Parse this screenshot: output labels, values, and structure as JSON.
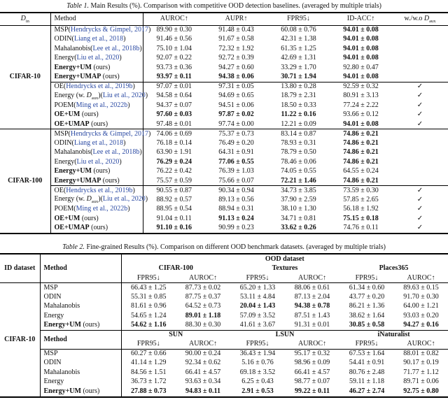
{
  "colors": {
    "citation_blue": "#2b4aa3",
    "text": "#111111",
    "rule": "#000000"
  },
  "check_glyph": "✓",
  "table1": {
    "caption_tag": "Table 1.",
    "caption_text": " Main Results (%). Comparison with competitive OOD detection baselines. (averaged by multiple trials)",
    "header": {
      "din_main": "D",
      "din_sub": "in",
      "method": "Method",
      "metrics": [
        "AUROC↑",
        "AUPR↑",
        "FPR95↓",
        "ID-ACC↑"
      ],
      "aux_prefix": "w./w.o ",
      "aux_main": "D",
      "aux_sub": "aux"
    },
    "groups": [
      {
        "dataset": "CIFAR-10",
        "blocks": [
          {
            "rows": [
              {
                "name": "MSP",
                "cite": "Hendrycks & Gimpel, 2017",
                "ours": false,
                "check": false,
                "values": [
                  "89.90 ± 0.30",
                  "91.48 ± 0.43",
                  "60.08 ± 0.76",
                  "94.01 ± 0.08"
                ],
                "bold": [
                  0,
                  0,
                  0,
                  1
                ]
              },
              {
                "name": "ODIN",
                "cite": "Liang et al., 2018",
                "ours": false,
                "check": false,
                "values": [
                  "91.46 ± 0.56",
                  "91.67 ± 0.58",
                  "42.31 ± 1.38",
                  "94.01 ± 0.08"
                ],
                "bold": [
                  0,
                  0,
                  0,
                  1
                ]
              },
              {
                "name": "Mahalanobis",
                "cite": "Lee et al., 2018b",
                "ours": false,
                "check": false,
                "values": [
                  "75.10 ± 1.04",
                  "72.32 ± 1.92",
                  "61.35 ± 1.25",
                  "94.01 ± 0.08"
                ],
                "bold": [
                  0,
                  0,
                  0,
                  1
                ]
              },
              {
                "name": "Energy",
                "cite": "Liu et al., 2020",
                "ours": false,
                "check": false,
                "values": [
                  "92.07 ± 0.22",
                  "92.72 ± 0.39",
                  "42.69 ± 1.31",
                  "94.01 ± 0.08"
                ],
                "bold": [
                  0,
                  0,
                  0,
                  1
                ]
              },
              {
                "name": "Energy+UM",
                "ours": true,
                "check": false,
                "values": [
                  "93.73 ± 0.36",
                  "94.27 ± 0.60",
                  "33.29 ± 1.70",
                  "92.80 ± 0.47"
                ],
                "bold": [
                  0,
                  0,
                  0,
                  0
                ]
              },
              {
                "name": "Energy+UMAP",
                "ours": true,
                "check": false,
                "values": [
                  "93.97 ± 0.11",
                  "94.38 ± 0.06",
                  "30.71 ± 1.94",
                  "94.01 ± 0.08"
                ],
                "bold": [
                  1,
                  1,
                  1,
                  1
                ]
              }
            ]
          },
          {
            "rows": [
              {
                "name": "OE",
                "cite": "Hendrycks et al., 2019b",
                "ours": false,
                "check": true,
                "values": [
                  "97.07 ± 0.01",
                  "97.31 ± 0.05",
                  "13.80 ± 0.28",
                  "92.59 ± 0.32"
                ],
                "bold": [
                  0,
                  0,
                  0,
                  0
                ]
              },
              {
                "name": "Energy (w. ",
                "aux": true,
                "after_aux": ")",
                "cite": "Liu et al., 2020",
                "ours": false,
                "check": true,
                "values": [
                  "94.58 ± 0.64",
                  "94.69 ± 0.65",
                  "18.79 ± 2.31",
                  "80.91 ± 3.13"
                ],
                "bold": [
                  0,
                  0,
                  0,
                  0
                ]
              },
              {
                "name": "POEM",
                "cite": "Ming et al., 2022b",
                "ours": false,
                "check": true,
                "values": [
                  "94.37 ± 0.07",
                  "94.51 ± 0.06",
                  "18.50 ± 0.33",
                  "77.24 ± 2.22"
                ],
                "bold": [
                  0,
                  0,
                  0,
                  0
                ]
              },
              {
                "name": "OE+UM",
                "ours": true,
                "check": true,
                "values": [
                  "97.60 ± 0.03",
                  "97.87 ± 0.02",
                  "11.22 ± 0.16",
                  "93.66 ± 0.12"
                ],
                "bold": [
                  1,
                  1,
                  1,
                  0
                ]
              },
              {
                "name": "OE+UMAP",
                "ours": true,
                "check": true,
                "values": [
                  "97.48 ± 0.01",
                  "97.74 ± 0.00",
                  "12.21 ± 0.09",
                  "94.01 ± 0.08"
                ],
                "bold": [
                  0,
                  0,
                  0,
                  1
                ]
              }
            ]
          }
        ]
      },
      {
        "dataset": "CIFAR-100",
        "blocks": [
          {
            "rows": [
              {
                "name": "MSP",
                "cite": "Hendrycks & Gimpel, 2017",
                "ours": false,
                "check": false,
                "values": [
                  "74.06 ± 0.69",
                  "75.37 ± 0.73",
                  "83.14 ± 0.87",
                  "74.86 ± 0.21"
                ],
                "bold": [
                  0,
                  0,
                  0,
                  1
                ]
              },
              {
                "name": "ODIN",
                "cite": "Liang et al., 2018",
                "ours": false,
                "check": false,
                "values": [
                  "76.18 ± 0.14",
                  "76.49 ± 0.20",
                  "78.93 ± 0.31",
                  "74.86 ± 0.21"
                ],
                "bold": [
                  0,
                  0,
                  0,
                  1
                ]
              },
              {
                "name": "Mahalanobis",
                "cite": "Lee et al., 2018b",
                "ours": false,
                "check": false,
                "values": [
                  "63.90 ± 1.91",
                  "64.31 ± 0.91",
                  "78.79 ± 0.50",
                  "74.86 ± 0.21"
                ],
                "bold": [
                  0,
                  0,
                  0,
                  1
                ]
              },
              {
                "name": "Energy",
                "cite": "Liu et al., 2020",
                "ours": false,
                "check": false,
                "values": [
                  "76.29 ± 0.24",
                  "77.06 ± 0.55",
                  "78.46 ± 0.06",
                  "74.86 ± 0.21"
                ],
                "bold": [
                  1,
                  1,
                  0,
                  1
                ]
              },
              {
                "name": "Energy+UM",
                "ours": true,
                "check": false,
                "values": [
                  "76.22 ± 0.42",
                  "76.39 ± 1.03",
                  "74.05 ± 0.55",
                  "64.55 ± 0.24"
                ],
                "bold": [
                  0,
                  0,
                  0,
                  0
                ]
              },
              {
                "name": "Energy+UMAP",
                "ours": true,
                "check": false,
                "values": [
                  "75.57 ± 0.59",
                  "75.66 ± 0.07",
                  "72.21 ± 1.46",
                  "74.86 ± 0.21"
                ],
                "bold": [
                  0,
                  0,
                  1,
                  1
                ]
              }
            ]
          },
          {
            "rows": [
              {
                "name": "OE",
                "cite": "Hendrycks et al., 2019b",
                "ours": false,
                "check": true,
                "values": [
                  "90.55 ± 0.87",
                  "90.34 ± 0.94",
                  "34.73 ± 3.85",
                  "73.59 ± 0.30"
                ],
                "bold": [
                  0,
                  0,
                  0,
                  0
                ]
              },
              {
                "name": "Energy (w. ",
                "aux": true,
                "after_aux": ")",
                "cite": "Liu et al., 2020",
                "ours": false,
                "check": true,
                "values": [
                  "88.92 ± 0.57",
                  "89.13 ± 0.56",
                  "37.90 ± 2.59",
                  "57.85 ± 2.65"
                ],
                "bold": [
                  0,
                  0,
                  0,
                  0
                ]
              },
              {
                "name": "POEM",
                "cite": "Ming et al., 2022b",
                "ours": false,
                "check": true,
                "values": [
                  "88.95 ± 0.54",
                  "88.94 ± 0.31",
                  "38.10 ± 1.30",
                  "56.18 ± 1.92"
                ],
                "bold": [
                  0,
                  0,
                  0,
                  0
                ]
              },
              {
                "name": "OE+UM",
                "ours": true,
                "check": true,
                "values": [
                  "91.04 ± 0.11",
                  "91.13 ± 0.24",
                  "34.71 ± 0.81",
                  "75.15 ± 0.18"
                ],
                "bold": [
                  0,
                  1,
                  0,
                  1
                ]
              },
              {
                "name": "OE+UMAP",
                "ours": true,
                "check": true,
                "values": [
                  "91.10 ± 0.16",
                  "90.99 ± 0.23",
                  "33.62 ± 0.26",
                  "74.76 ± 0.11"
                ],
                "bold": [
                  1,
                  0,
                  1,
                  0
                ]
              }
            ]
          }
        ]
      }
    ]
  },
  "table2": {
    "caption_tag": "Table 2.",
    "caption_text": " Fine-grained Results (%). Comparison on different OOD benchmark datasets. (averaged by multiple trials)",
    "id_header": "ID dataset",
    "method_header": "Method",
    "ood_header": "OOD dataset",
    "id_dataset": "CIFAR-10",
    "metric_pair": [
      "FPR95↓",
      "AUROC↑"
    ],
    "section1": {
      "groups": [
        "CIFAR-100",
        "Textures",
        "Places365"
      ],
      "rows": [
        {
          "name": "MSP",
          "ours": false,
          "values": [
            "66.43 ± 1.25",
            "87.73 ± 0.02",
            "65.20 ± 1.33",
            "88.06 ± 0.61",
            "61.34 ± 0.60",
            "89.63 ± 0.15"
          ],
          "bold": [
            0,
            0,
            0,
            0,
            0,
            0
          ]
        },
        {
          "name": "ODIN",
          "ours": false,
          "values": [
            "55.31 ± 0.85",
            "87.75 ± 0.37",
            "53.11 ± 4.84",
            "87.13 ± 2.04",
            "43.77 ± 0.20",
            "91.70 ± 0.30"
          ],
          "bold": [
            0,
            0,
            0,
            0,
            0,
            0
          ]
        },
        {
          "name": "Mahalanobis",
          "ours": false,
          "values": [
            "81.61 ± 0.96",
            "64.52 ± 0.73",
            "20.04 ± 1.43",
            "94.38 ± 0.78",
            "86.21 ± 1.36",
            "64.00 ± 1.21"
          ],
          "bold": [
            0,
            0,
            1,
            1,
            0,
            0
          ]
        },
        {
          "name": "Energy",
          "ours": false,
          "values": [
            "54.65 ± 1.24",
            "89.01 ± 1.18",
            "57.09 ± 3.52",
            "87.51 ± 1.43",
            "38.62 ± 1.64",
            "93.03 ± 0.20"
          ],
          "bold": [
            0,
            1,
            0,
            0,
            0,
            0
          ]
        },
        {
          "name": "Energy+UM",
          "ours": true,
          "values": [
            "54.62 ± 1.16",
            "88.30 ± 0.30",
            "41.61 ± 3.67",
            "91.31 ± 0.01",
            "30.85 ± 0.58",
            "94.27 ± 0.16"
          ],
          "bold": [
            1,
            0,
            0,
            0,
            1,
            1
          ]
        }
      ]
    },
    "section2": {
      "groups": [
        "SUN",
        "LSUN",
        "iNaturalist"
      ],
      "rows": [
        {
          "name": "MSP",
          "ours": false,
          "values": [
            "60.27 ± 0.66",
            "90.00 ± 0.24",
            "36.43 ± 1.94",
            "95.17 ± 0.32",
            "67.53 ± 1.64",
            "88.01 ± 0.82"
          ],
          "bold": [
            0,
            0,
            0,
            0,
            0,
            0
          ]
        },
        {
          "name": "ODIN",
          "ours": false,
          "values": [
            "41.14 ± 1.29",
            "92.34 ± 0.62",
            "5.16 ± 0.76",
            "98.96 ± 0.09",
            "54.41 ± 0.91",
            "90.17 ± 0.19"
          ],
          "bold": [
            0,
            0,
            0,
            0,
            0,
            0
          ]
        },
        {
          "name": "Mahalanobis",
          "ours": false,
          "values": [
            "84.56 ± 1.51",
            "66.41 ± 4.57",
            "69.18 ± 3.52",
            "66.41 ± 4.57",
            "80.76 ± 2.48",
            "71.77 ± 1.12"
          ],
          "bold": [
            0,
            0,
            0,
            0,
            0,
            0
          ]
        },
        {
          "name": "Energy",
          "ours": false,
          "values": [
            "36.73 ± 1.72",
            "93.63 ± 0.34",
            "6.25 ± 0.43",
            "98.77 ± 0.07",
            "59.11 ± 1.18",
            "89.71 ± 0.06"
          ],
          "bold": [
            0,
            0,
            0,
            0,
            0,
            0
          ]
        },
        {
          "name": "Energy+UM",
          "ours": true,
          "values": [
            "27.88 ± 0.73",
            "94.83 ± 0.11",
            "2.91 ± 0.53",
            "99.22 ± 0.11",
            "46.27 ± 2.74",
            "92.75 ± 0.80"
          ],
          "bold": [
            1,
            1,
            1,
            1,
            1,
            1
          ]
        }
      ]
    }
  }
}
